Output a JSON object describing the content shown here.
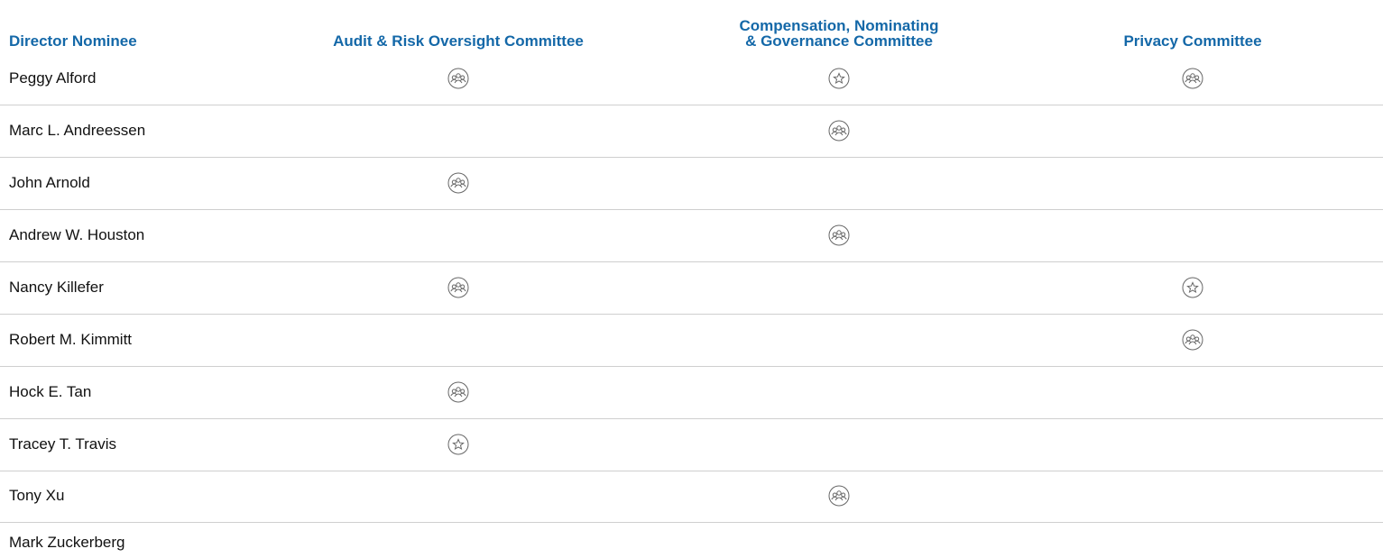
{
  "table": {
    "columns": [
      "Director Nominee",
      "Audit & Risk Oversight Committee",
      "Compensation, Nominating & Governance Committee",
      "Privacy Committee"
    ],
    "rows": [
      "Peggy Alford",
      "Marc L. Andreessen",
      "John Arnold",
      "Andrew W. Houston",
      "Nancy Killefer",
      "Robert M. Kimmitt",
      "Hock E. Tan",
      "Tracey T. Travis",
      "Tony Xu",
      "Mark Zuckerberg"
    ]
  }
}
